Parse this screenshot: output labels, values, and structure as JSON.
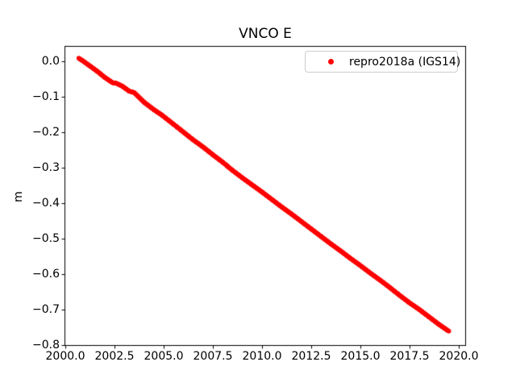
{
  "chart_data": {
    "type": "scatter",
    "title": "VNCO E",
    "xlabel": "",
    "ylabel": "m",
    "xlim": [
      2000.0,
      2020.33
    ],
    "ylim": [
      -0.8,
      0.04
    ],
    "grid": false,
    "xticks": [
      2000.0,
      2002.5,
      2005.0,
      2007.5,
      2010.0,
      2012.5,
      2015.0,
      2017.5,
      2020.0
    ],
    "xticklabels": [
      "2000.0",
      "2002.5",
      "2005.0",
      "2007.5",
      "2010.0",
      "2012.5",
      "2015.0",
      "2017.5",
      "2020.0"
    ],
    "yticks": [
      0.0,
      -0.1,
      -0.2,
      -0.3,
      -0.4,
      -0.5,
      -0.6,
      -0.7,
      -0.8
    ],
    "yticklabels": [
      "0.0",
      "−0.1",
      "−0.2",
      "−0.3",
      "−0.4",
      "−0.5",
      "−0.6",
      "−0.7",
      "−0.8"
    ],
    "legend_position": "upper right",
    "colors": {
      "series": "#ff0000",
      "axis": "#000000",
      "background": "#ffffff",
      "legend_border": "#cccccc"
    },
    "series": [
      {
        "name": "repro2018a (IGS14)",
        "color": "#ff0000",
        "marker": "dot",
        "marker_radius_px": 2.7,
        "points": [
          [
            2000.68,
            0.008
          ],
          [
            2000.9,
            0.0
          ],
          [
            2001.2,
            -0.012
          ],
          [
            2001.6,
            -0.028
          ],
          [
            2002.0,
            -0.046
          ],
          [
            2002.4,
            -0.061
          ],
          [
            2002.6,
            -0.063
          ],
          [
            2002.9,
            -0.071
          ],
          [
            2003.25,
            -0.085
          ],
          [
            2003.5,
            -0.089
          ],
          [
            2004.0,
            -0.116
          ],
          [
            2004.5,
            -0.137
          ],
          [
            2004.9,
            -0.152
          ],
          [
            2005.5,
            -0.178
          ],
          [
            2006.0,
            -0.2
          ],
          [
            2006.5,
            -0.222
          ],
          [
            2007.0,
            -0.242
          ],
          [
            2007.5,
            -0.264
          ],
          [
            2008.0,
            -0.285
          ],
          [
            2008.5,
            -0.308
          ],
          [
            2009.0,
            -0.329
          ],
          [
            2009.5,
            -0.349
          ],
          [
            2010.0,
            -0.369
          ],
          [
            2010.5,
            -0.39
          ],
          [
            2011.0,
            -0.411
          ],
          [
            2011.5,
            -0.431
          ],
          [
            2012.0,
            -0.452
          ],
          [
            2012.5,
            -0.473
          ],
          [
            2013.0,
            -0.494
          ],
          [
            2013.5,
            -0.515
          ],
          [
            2014.0,
            -0.535
          ],
          [
            2014.5,
            -0.556
          ],
          [
            2015.0,
            -0.576
          ],
          [
            2015.5,
            -0.597
          ],
          [
            2016.0,
            -0.617
          ],
          [
            2016.5,
            -0.638
          ],
          [
            2017.0,
            -0.66
          ],
          [
            2017.5,
            -0.681
          ],
          [
            2018.0,
            -0.7
          ],
          [
            2018.5,
            -0.721
          ],
          [
            2019.0,
            -0.742
          ],
          [
            2019.5,
            -0.761
          ]
        ]
      }
    ]
  }
}
